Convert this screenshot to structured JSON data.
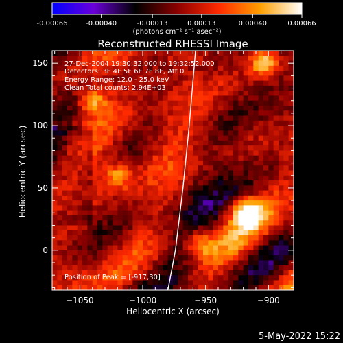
{
  "colorbar": {
    "tick_labels": [
      "-0.00066",
      "-0.00040",
      "-0.00013",
      "0.00013",
      "0.00040",
      "0.00066"
    ],
    "tick_values": [
      -0.00066,
      -0.0004,
      -0.00013,
      0.00013,
      0.0004,
      0.00066
    ],
    "range": [
      -0.00066,
      0.00066
    ],
    "units_label": "(photons cm⁻² s⁻¹ asec⁻²)",
    "colors": [
      "#0000ff",
      "#6a00d8",
      "#000000",
      "#8a0000",
      "#ff2a00",
      "#ffa000",
      "#ffffff"
    ]
  },
  "chart_data": {
    "type": "heatmap",
    "title": "Reconstructed RHESSI Image",
    "xlabel": "Heliocentric X (arcsec)",
    "ylabel": "Heliocentric Y (arcsec)",
    "xlim": [
      -1072,
      -880
    ],
    "ylim": [
      -32,
      160
    ],
    "x_ticks": [
      -1050,
      -1000,
      -950,
      -900
    ],
    "x_tick_labels": [
      "−1050",
      "−1000",
      "−950",
      "−900"
    ],
    "y_ticks": [
      0,
      50,
      100,
      150
    ],
    "y_tick_labels": [
      "0",
      "50",
      "100",
      "150"
    ],
    "limb_line": [
      [
        -980,
        -32
      ],
      [
        -974,
        0
      ],
      [
        -968,
        50
      ],
      [
        -963,
        100
      ],
      [
        -958,
        160
      ]
    ],
    "annotations": [
      "27-Dec-2004 19:30:32.000 to 19:32:52.000",
      "Detectors: 3F 4F 5F 6F 7F 8F, Att 0",
      "Energy Range: 12.0 - 25.0 keV",
      "Clean     Total counts: 2.94E+03"
    ],
    "peak_label": "Position of Peak = [-917,30]",
    "peak": [
      -917,
      30
    ],
    "bright_sources": [
      {
        "x": -917,
        "y": 30,
        "value": 0.00066
      },
      {
        "x": -903,
        "y": 150,
        "value": 0.0005
      },
      {
        "x": -1040,
        "y": 120,
        "value": 0.00045
      },
      {
        "x": -1020,
        "y": 60,
        "value": 0.0004
      },
      {
        "x": -955,
        "y": 5,
        "value": 0.0004
      }
    ]
  },
  "footer": {
    "timestamp": "5-May-2022 15:22"
  }
}
